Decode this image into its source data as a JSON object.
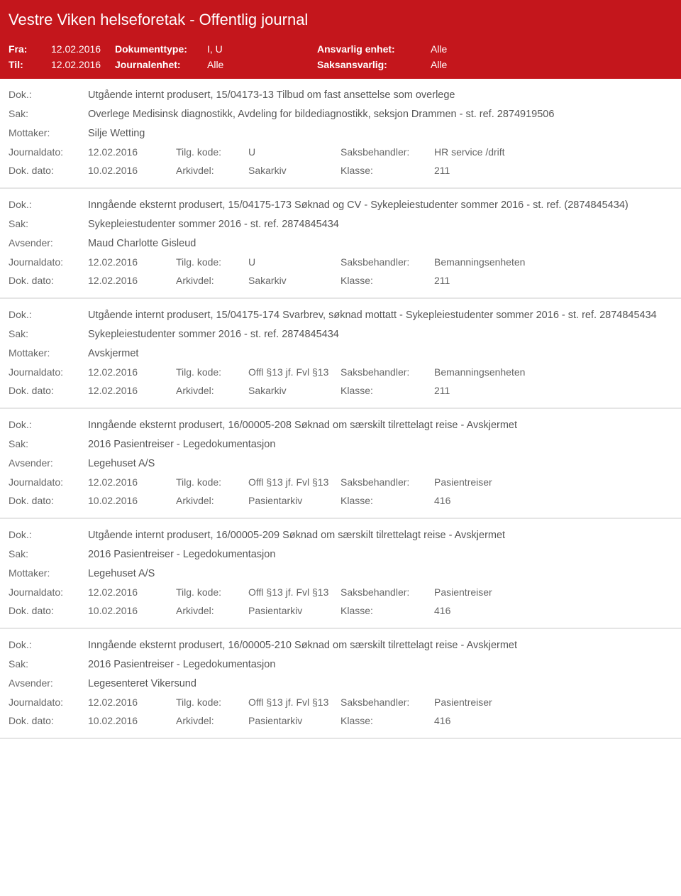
{
  "colors": {
    "red": "#c4161c",
    "white": "#ffffff",
    "text": "#555555",
    "label": "#666666",
    "divider": "#e5e5e5"
  },
  "header": {
    "title": "Vestre Viken helseforetak - Offentlig journal"
  },
  "filter": {
    "fra_label": "Fra:",
    "fra_value": "12.02.2016",
    "til_label": "Til:",
    "til_value": "12.02.2016",
    "dokumenttype_label": "Dokumenttype:",
    "dokumenttype_value": "I, U",
    "journalenhet_label": "Journalenhet:",
    "journalenhet_value": "Alle",
    "ansvarlig_label": "Ansvarlig enhet:",
    "ansvarlig_value": "Alle",
    "saksansvarlig_label": "Saksansvarlig:",
    "saksansvarlig_value": "Alle"
  },
  "labels": {
    "dok": "Dok.:",
    "sak": "Sak:",
    "mottaker": "Mottaker:",
    "avsender": "Avsender:",
    "journaldato": "Journaldato:",
    "dokdato": "Dok. dato:",
    "tilgkode": "Tilg. kode:",
    "arkivdel": "Arkivdel:",
    "saksbehandler": "Saksbehandler:",
    "klasse": "Klasse:"
  },
  "entries": [
    {
      "dok": "Utgående internt produsert, 15/04173-13 Tilbud om fast ansettelse som overlege",
      "sak": "Overlege Medisinsk diagnostikk, Avdeling for bildediagnostikk, seksjon Drammen - st. ref. 2874919506",
      "party_label": "Mottaker:",
      "party": "Silje Wetting",
      "journaldato": "12.02.2016",
      "tilgkode": "U",
      "saksbehandler": "HR service /drift",
      "dokdato": "10.02.2016",
      "arkivdel": "Sakarkiv",
      "klasse": "211"
    },
    {
      "dok": "Inngående eksternt produsert, 15/04175-173 Søknad og CV - Sykepleiestudenter sommer 2016 - st. ref. (2874845434)",
      "sak": "Sykepleiestudenter sommer 2016  - st. ref. 2874845434",
      "party_label": "Avsender:",
      "party": "Maud Charlotte Gisleud",
      "journaldato": "12.02.2016",
      "tilgkode": "U",
      "saksbehandler": "Bemanningsenheten",
      "dokdato": "12.02.2016",
      "arkivdel": "Sakarkiv",
      "klasse": "211"
    },
    {
      "dok": "Utgående internt produsert, 15/04175-174 Svarbrev, søknad mottatt - Sykepleiestudenter sommer 2016  - st. ref. 2874845434",
      "sak": "Sykepleiestudenter sommer 2016  - st. ref. 2874845434",
      "party_label": "Mottaker:",
      "party": "Avskjermet",
      "journaldato": "12.02.2016",
      "tilgkode": "Offl §13 jf. Fvl §13",
      "saksbehandler": "Bemanningsenheten",
      "dokdato": "12.02.2016",
      "arkivdel": "Sakarkiv",
      "klasse": "211"
    },
    {
      "dok": "Inngående eksternt produsert, 16/00005-208 Søknad om særskilt tilrettelagt reise - Avskjermet",
      "sak": "2016 Pasientreiser - Legedokumentasjon",
      "party_label": "Avsender:",
      "party": "Legehuset A/S",
      "journaldato": "12.02.2016",
      "tilgkode": "Offl §13 jf. Fvl §13",
      "saksbehandler": "Pasientreiser",
      "dokdato": "10.02.2016",
      "arkivdel": "Pasientarkiv",
      "klasse": "416"
    },
    {
      "dok": "Utgående internt produsert, 16/00005-209 Søknad om særskilt tilrettelagt reise - Avskjermet",
      "sak": "2016 Pasientreiser - Legedokumentasjon",
      "party_label": "Mottaker:",
      "party": "Legehuset A/S",
      "journaldato": "12.02.2016",
      "tilgkode": "Offl §13 jf. Fvl §13",
      "saksbehandler": "Pasientreiser",
      "dokdato": "10.02.2016",
      "arkivdel": "Pasientarkiv",
      "klasse": "416"
    },
    {
      "dok": "Inngående eksternt produsert, 16/00005-210 Søknad om særskilt tilrettelagt reise - Avskjermet",
      "sak": "2016 Pasientreiser - Legedokumentasjon",
      "party_label": "Avsender:",
      "party": "Legesenteret Vikersund",
      "journaldato": "12.02.2016",
      "tilgkode": "Offl §13 jf. Fvl §13",
      "saksbehandler": "Pasientreiser",
      "dokdato": "10.02.2016",
      "arkivdel": "Pasientarkiv",
      "klasse": "416"
    }
  ]
}
